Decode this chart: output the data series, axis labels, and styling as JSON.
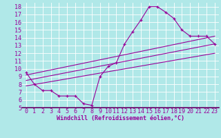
{
  "xlabel": "Windchill (Refroidissement éolien,°C)",
  "background_color": "#b0e8e8",
  "grid_color": "#ffffff",
  "line_color": "#990099",
  "xlim": [
    -0.5,
    23.5
  ],
  "ylim": [
    5,
    18.5
  ],
  "xticks": [
    0,
    1,
    2,
    3,
    4,
    5,
    6,
    7,
    8,
    9,
    10,
    11,
    12,
    13,
    14,
    15,
    16,
    17,
    18,
    19,
    20,
    21,
    22,
    23
  ],
  "yticks": [
    5,
    6,
    7,
    8,
    9,
    10,
    11,
    12,
    13,
    14,
    15,
    16,
    17,
    18
  ],
  "series1_x": [
    0,
    1,
    2,
    3,
    4,
    5,
    6,
    7,
    8,
    9,
    10,
    11,
    12,
    13,
    14,
    15,
    16,
    17,
    18,
    19,
    20,
    21,
    22,
    23
  ],
  "series1_y": [
    9.5,
    8.0,
    7.2,
    7.2,
    6.5,
    6.5,
    6.5,
    5.5,
    5.3,
    9.0,
    10.3,
    10.8,
    13.2,
    14.8,
    16.3,
    18.0,
    18.0,
    17.3,
    16.5,
    15.0,
    14.2,
    14.2,
    14.2,
    13.2
  ],
  "line1_x": [
    0,
    23
  ],
  "line1_y": [
    7.8,
    12.0
  ],
  "line2_x": [
    0,
    23
  ],
  "line2_y": [
    8.5,
    13.2
  ],
  "line3_x": [
    0,
    23
  ],
  "line3_y": [
    9.2,
    14.2
  ],
  "tick_fontsize": 6,
  "xlabel_fontsize": 6,
  "separator_color": "#660066"
}
